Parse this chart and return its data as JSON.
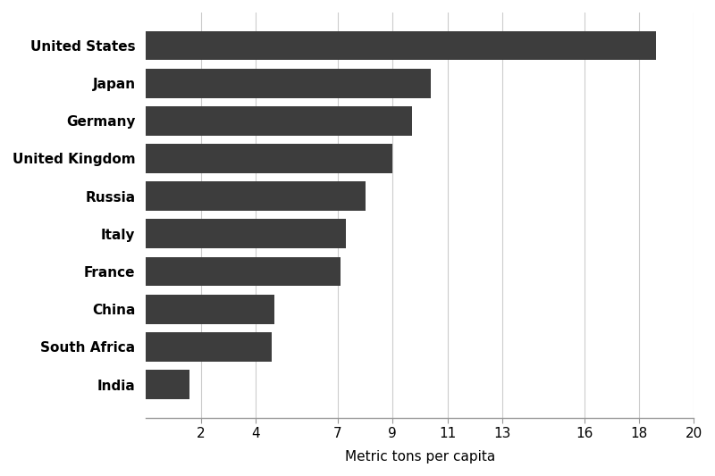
{
  "xlabel": "Metric tons per capita",
  "categories": [
    "India",
    "South Africa",
    "China",
    "France",
    "Italy",
    "Russia",
    "United Kingdom",
    "Germany",
    "Japan",
    "United States"
  ],
  "values": [
    1.6,
    4.6,
    4.7,
    7.1,
    7.3,
    8.0,
    9.0,
    9.7,
    10.4,
    18.6
  ],
  "bar_color": "#3d3d3d",
  "background_color": "#ffffff",
  "xlim": [
    0,
    20
  ],
  "xticks": [
    2,
    4,
    7,
    9,
    11,
    13,
    16,
    18,
    20
  ],
  "grid_color": "#cccccc",
  "bar_height": 0.78,
  "label_fontsize": 11,
  "label_fontweight": "bold",
  "xlabel_fontsize": 11,
  "tick_fontsize": 11
}
